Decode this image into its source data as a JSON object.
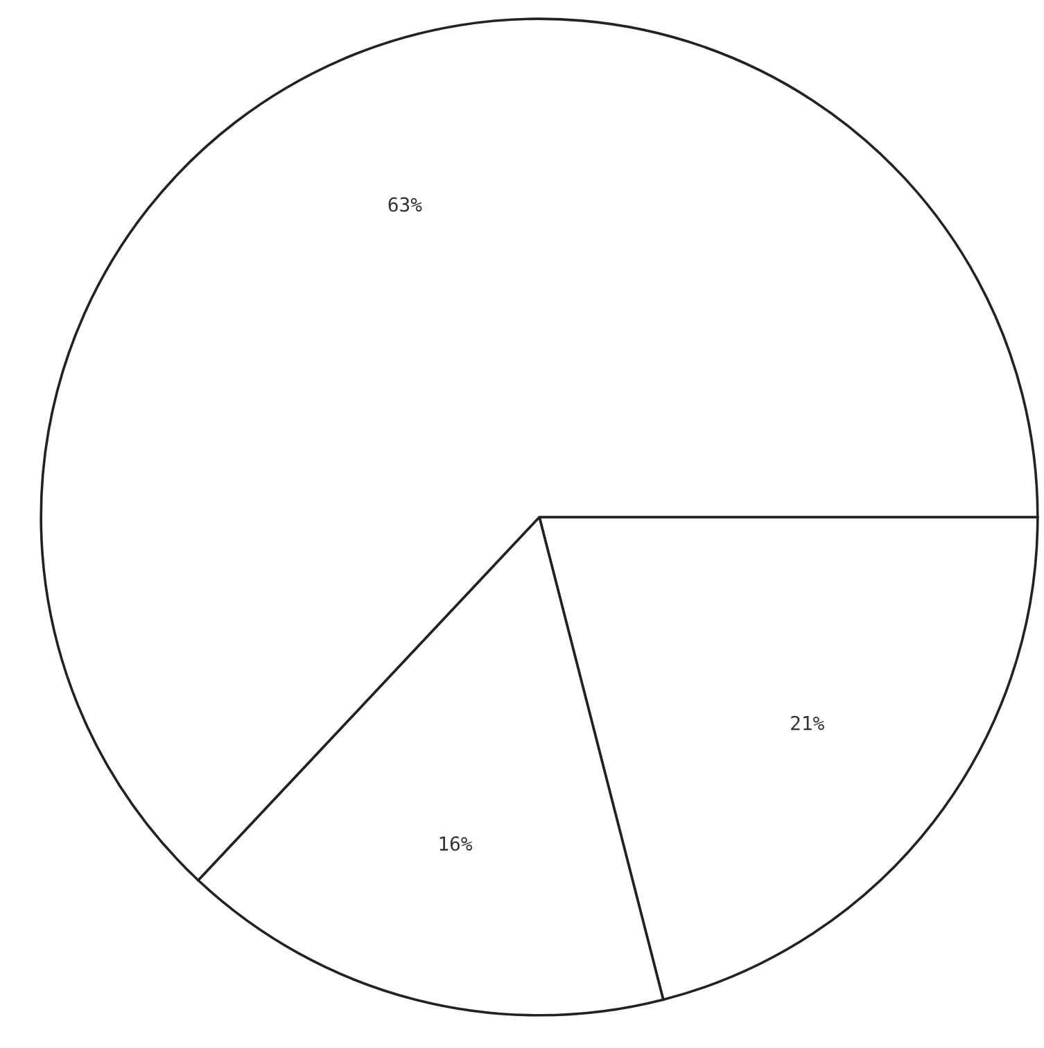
{
  "chart_data": {
    "type": "pie",
    "categories": [
      null,
      null,
      null
    ],
    "values": [
      21,
      16,
      63
    ],
    "colors": [
      "#ffffff",
      "#ffffff",
      "#ffffff"
    ],
    "value_labels": [
      "21%",
      "16%",
      "63%"
    ]
  }
}
